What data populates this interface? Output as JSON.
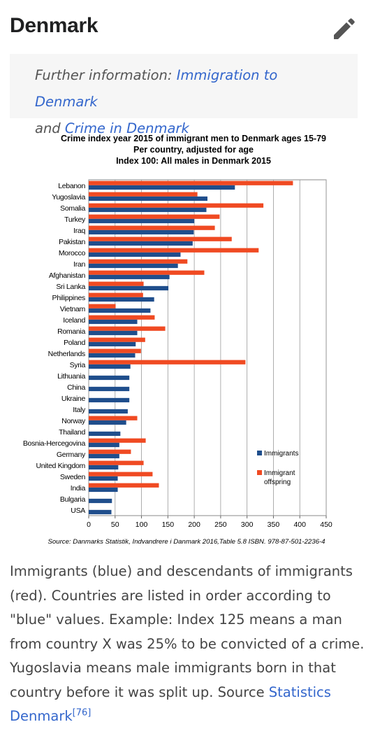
{
  "page": {
    "title": "Denmark",
    "edit_icon": "pencil-icon"
  },
  "hatnote": {
    "prefix": "Further information: ",
    "link1": "Immigration to Denmark",
    "middle": " and ",
    "link2": "Crime in Denmark"
  },
  "chart_data": {
    "type": "bar",
    "orientation": "horizontal",
    "title_lines": [
      "Crime index year 2015 of immigrant men to Denmark ages 15-79",
      "Per country, adjusted for age",
      "Index 100: All males in Denmark 2015"
    ],
    "categories": [
      "Lebanon",
      "Yugoslavia",
      "Somalia",
      "Turkey",
      "Iraq",
      "Pakistan",
      "Morocco",
      "Iran",
      "Afghanistan",
      "Sri Lanka",
      "Philippines",
      "Vietnam",
      "Iceland",
      "Romania",
      "Poland",
      "Netherlands",
      "Syria",
      "Lithuania",
      "China",
      "Ukraine",
      "Italy",
      "Norway",
      "Thailand",
      "Bosnia-Hercegovina",
      "Germany",
      "United Kingdom",
      "Sweden",
      "India",
      "Bulgaria",
      "USA"
    ],
    "series": [
      {
        "name": "Immigrants",
        "color": "#1f4e8c",
        "values": [
          277,
          225,
          223,
          200,
          199,
          197,
          174,
          169,
          153,
          151,
          124,
          117,
          92,
          92,
          89,
          88,
          79,
          77,
          77,
          77,
          74,
          71,
          60,
          58,
          58,
          56,
          55,
          55,
          44,
          43
        ]
      },
      {
        "name": "Immigrant offspring",
        "color": "#f04a22",
        "values": [
          387,
          206,
          331,
          248,
          239,
          271,
          322,
          187,
          219,
          104,
          103,
          51,
          125,
          145,
          107,
          99,
          297,
          null,
          null,
          null,
          null,
          92,
          null,
          108,
          80,
          104,
          121,
          133,
          null,
          null
        ]
      }
    ],
    "legend": [
      "Immigrants",
      "Immigrant offspring"
    ],
    "legend_placement": "right",
    "xlim": [
      0,
      450
    ],
    "xticks": [
      0,
      50,
      100,
      150,
      200,
      250,
      300,
      350,
      400,
      450
    ],
    "grid": true,
    "source": "Source: Danmarks Statistik, Indvandrere i Danmark 2016,Table 5.8 ISBN. 978-87-501-2236-4"
  },
  "caption": {
    "text": "Immigrants (blue) and descendants of immigrants (red). Countries are listed in order according to \"blue\" values. Example: Index 125 means a man from country X was 25% to be convicted of a crime. Yugoslavia means male immigrants born in that country before it was split up. Source ",
    "link": "Statistics Denmark",
    "ref": "[76]"
  }
}
